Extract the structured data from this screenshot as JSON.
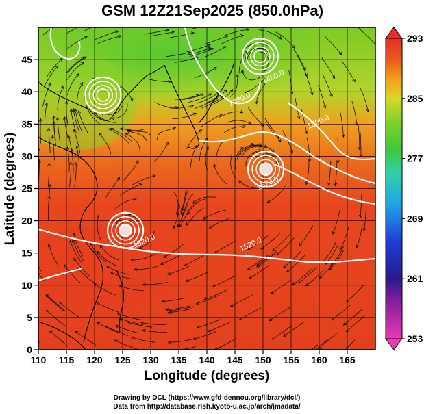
{
  "chart_data": {
    "type": "heatmap",
    "title": "GSM 12Z21Sep2025 (850.0hPa)",
    "xlabel": "Longitude (degrees)",
    "ylabel": "Latitude  (degrees)",
    "xlim": [
      110,
      170
    ],
    "ylim": [
      0,
      50
    ],
    "xticks": [
      "110",
      "115",
      "120",
      "125",
      "130",
      "135",
      "140",
      "145",
      "150",
      "155",
      "160",
      "165"
    ],
    "yticks": [
      "0",
      "5",
      "10",
      "15",
      "20",
      "25",
      "30",
      "35",
      "40",
      "45"
    ],
    "colorbar": {
      "min": 253,
      "max": 293,
      "labels": [
        "293",
        "285",
        "277",
        "269",
        "261",
        "253"
      ]
    },
    "contours": [
      {
        "label": "1480.0",
        "lon": 146,
        "lat": 38.5
      },
      {
        "label": "1480.0",
        "lon": 152,
        "lat": 42
      },
      {
        "label": "1500.0",
        "lon": 160,
        "lat": 35
      },
      {
        "label": "1520.0",
        "lon": 151,
        "lat": 25.5
      },
      {
        "label": "1520.0",
        "lon": 129,
        "lat": 16.5
      },
      {
        "label": "1520.0",
        "lon": 148,
        "lat": 16
      }
    ],
    "cyclones": [
      {
        "lon": 150.5,
        "lat": 28
      },
      {
        "lon": 125.5,
        "lat": 18.5
      },
      {
        "lon": 149.5,
        "lat": 45.5
      },
      {
        "lon": 121.5,
        "lat": 39.5
      }
    ]
  },
  "credits": {
    "line1": "Drawing by DCL (https://www.gfd-dennou.org/library/dcl/)",
    "line2": "Data from http://database.rish.kyoto-u.ac.jp/arch/jmadata/"
  }
}
